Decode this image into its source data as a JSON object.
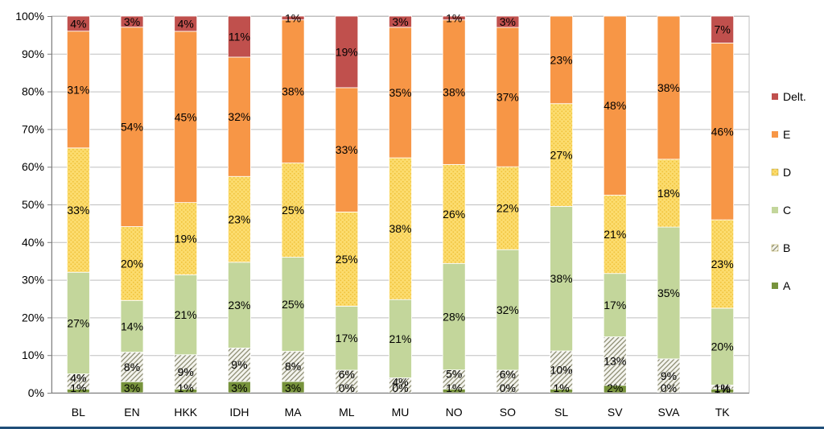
{
  "chart_data": {
    "type": "bar",
    "stacked": true,
    "percent": true,
    "title": "",
    "xlabel": "",
    "ylabel": "",
    "ylim": [
      0,
      100
    ],
    "yticks": [
      0,
      10,
      20,
      30,
      40,
      50,
      60,
      70,
      80,
      90,
      100
    ],
    "ytick_labels": [
      "0%",
      "10%",
      "20%",
      "30%",
      "40%",
      "50%",
      "60%",
      "70%",
      "80%",
      "90%",
      "100%"
    ],
    "grid": true,
    "legend_position": "right",
    "categories": [
      "BL",
      "EN",
      "HKK",
      "IDH",
      "MA",
      "ML",
      "MU",
      "NO",
      "SO",
      "SL",
      "SV",
      "SVA",
      "TK"
    ],
    "series": [
      {
        "name": "A",
        "color": "#77933c",
        "pattern": "solid",
        "values": [
          1,
          3,
          1,
          3,
          3,
          0,
          0,
          1,
          0,
          1,
          2,
          0,
          1
        ],
        "labels": [
          "1%",
          "3%",
          "1%",
          "3%",
          "3%",
          "0%",
          "0%",
          "1%",
          "0%",
          "1%",
          "2%",
          "0%",
          "1%"
        ]
      },
      {
        "name": "B",
        "color": "#9a9a7e",
        "pattern": "hatch",
        "values": [
          4,
          8,
          9,
          9,
          8,
          6,
          4,
          5,
          6,
          10,
          13,
          9,
          1
        ],
        "labels": [
          "4%",
          "8%",
          "9%",
          "9%",
          "8%",
          "6%",
          "4%",
          "5%",
          "6%",
          "10%",
          "13%",
          "9%",
          "1%"
        ]
      },
      {
        "name": "C",
        "color": "#c3d69b",
        "pattern": "solid",
        "values": [
          27,
          14,
          21,
          23,
          25,
          17,
          21,
          28,
          32,
          38,
          17,
          35,
          20
        ],
        "labels": [
          "27%",
          "14%",
          "21%",
          "23%",
          "25%",
          "17%",
          "21%",
          "28%",
          "32%",
          "38%",
          "17%",
          "35%",
          "20%"
        ]
      },
      {
        "name": "D",
        "color": "#fcd96a",
        "pattern": "dots",
        "values": [
          33,
          20,
          19,
          23,
          25,
          25,
          38,
          26,
          22,
          27,
          21,
          18,
          23
        ],
        "labels": [
          "33%",
          "20%",
          "19%",
          "23%",
          "25%",
          "25%",
          "38%",
          "26%",
          "22%",
          "27%",
          "21%",
          "18%",
          "23%"
        ]
      },
      {
        "name": "E",
        "color": "#f79646",
        "pattern": "solid",
        "values": [
          31,
          54,
          45,
          32,
          38,
          33,
          35,
          38,
          37,
          23,
          48,
          38,
          46
        ],
        "labels": [
          "31%",
          "54%",
          "45%",
          "32%",
          "38%",
          "33%",
          "35%",
          "38%",
          "37%",
          "23%",
          "48%",
          "38%",
          "46%"
        ]
      },
      {
        "name": "Delt.",
        "color": "#c0504d",
        "pattern": "solid",
        "values": [
          4,
          3,
          4,
          11,
          1,
          19,
          3,
          1,
          3,
          0,
          0,
          0,
          7
        ],
        "labels": [
          "4%",
          "3%",
          "4%",
          "11%",
          "1%",
          "19%",
          "3%",
          "1%",
          "3%",
          "",
          "",
          "",
          "7%"
        ]
      }
    ],
    "legend_order": [
      "Delt.",
      "E",
      "D",
      "C",
      "B",
      "A"
    ]
  }
}
